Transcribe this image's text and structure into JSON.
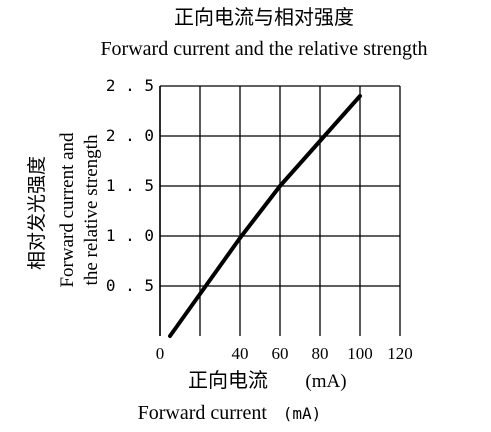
{
  "chart_data": {
    "type": "line",
    "title": "正向电流与相对强度",
    "subtitle": "Forward current and the relative strength",
    "xlabel_cn": "正向电流",
    "xlabel_unit": "(mA)",
    "xlabel_en": "Forward current",
    "xlabel_en_unit": "(mA)",
    "ylabel_cn": "相对发光强度",
    "ylabel_en_1": "Forward current and",
    "ylabel_en_2": "the relative strength",
    "xlim": [
      0,
      120
    ],
    "ylim": [
      0,
      2.5
    ],
    "x_ticks": [
      0,
      20,
      40,
      60,
      80,
      100,
      120
    ],
    "x_tick_labels": [
      "0",
      "",
      "40",
      "60",
      "80",
      "100",
      "120"
    ],
    "y_ticks": [
      0.5,
      1.0,
      1.5,
      2.0,
      2.5
    ],
    "y_tick_labels": [
      "0.5",
      "1.0",
      "1.5",
      "2.0",
      "2.5"
    ],
    "grid": true,
    "series": [
      {
        "x": [
          5,
          20,
          40,
          60,
          80,
          100
        ],
        "y": [
          0.0,
          0.42,
          0.98,
          1.5,
          1.95,
          2.4
        ],
        "color": "#000000"
      }
    ],
    "accent_colors": {
      "line": "#000000",
      "grid": "#000000",
      "text": "#000000"
    }
  }
}
